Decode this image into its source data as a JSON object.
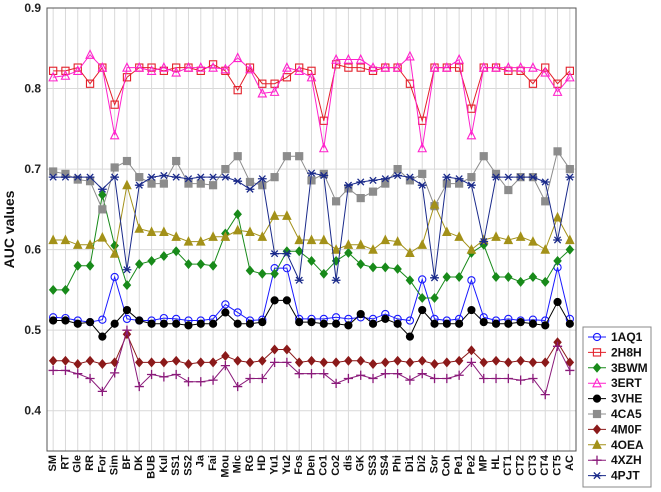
{
  "chart_data": {
    "type": "line",
    "title": "",
    "xlabel": "",
    "ylabel": "AUC values",
    "ylim": [
      0.35,
      0.9
    ],
    "yticks": [
      0.4,
      0.5,
      0.6,
      0.7,
      0.8,
      0.9
    ],
    "ytick_labels": [
      "0.4",
      "0.5",
      "0.6",
      "0.7",
      "0.8",
      "0.9"
    ],
    "grid": true,
    "legend_position": "right-bottom",
    "categories": [
      "SM",
      "RT",
      "Gle",
      "RR",
      "For",
      "Sim",
      "BF",
      "DK",
      "BUB",
      "Kul",
      "SS1",
      "SS2",
      "Ja",
      "Fai",
      "Mou",
      "Mic",
      "RG",
      "HD",
      "Yu1",
      "Yu2",
      "Fos",
      "Den",
      "Co1",
      "Co2",
      "dis",
      "GK",
      "SS3",
      "SS4",
      "Phi",
      "Di1",
      "Di2",
      "Sor",
      "Coh",
      "Pe1",
      "Pe2",
      "MP",
      "HL",
      "CT1",
      "CT2",
      "CT3",
      "CT4",
      "CT5",
      "AC"
    ],
    "series": [
      {
        "name": "1AQ1",
        "color": "#1a1aff",
        "marker": "circle-open",
        "values": [
          0.516,
          0.515,
          0.512,
          0.51,
          0.513,
          0.566,
          0.514,
          0.512,
          0.512,
          0.515,
          0.514,
          0.512,
          0.512,
          0.514,
          0.532,
          0.522,
          0.512,
          0.513,
          0.577,
          0.577,
          0.514,
          0.514,
          0.514,
          0.516,
          0.514,
          0.516,
          0.514,
          0.52,
          0.514,
          0.512,
          0.563,
          0.514,
          0.512,
          0.514,
          0.562,
          0.516,
          0.512,
          0.514,
          0.512,
          0.513,
          0.512,
          0.578,
          0.514
        ]
      },
      {
        "name": "2H8H",
        "color": "#e3202a",
        "marker": "square-open",
        "values": [
          0.822,
          0.822,
          0.826,
          0.806,
          0.826,
          0.78,
          0.814,
          0.826,
          0.826,
          0.822,
          0.826,
          0.826,
          0.822,
          0.83,
          0.822,
          0.798,
          0.826,
          0.806,
          0.806,
          0.814,
          0.826,
          0.822,
          0.76,
          0.83,
          0.826,
          0.826,
          0.822,
          0.826,
          0.826,
          0.806,
          0.76,
          0.826,
          0.826,
          0.826,
          0.775,
          0.826,
          0.826,
          0.822,
          0.822,
          0.806,
          0.826,
          0.806,
          0.822
        ]
      },
      {
        "name": "3BWM",
        "color": "#188a1a",
        "marker": "diamond-filled",
        "values": [
          0.55,
          0.55,
          0.58,
          0.58,
          0.668,
          0.605,
          0.556,
          0.582,
          0.586,
          0.592,
          0.598,
          0.582,
          0.582,
          0.58,
          0.62,
          0.644,
          0.574,
          0.57,
          0.57,
          0.598,
          0.598,
          0.586,
          0.57,
          0.586,
          0.596,
          0.582,
          0.578,
          0.578,
          0.576,
          0.562,
          0.54,
          0.54,
          0.566,
          0.566,
          0.596,
          0.606,
          0.566,
          0.566,
          0.56,
          0.566,
          0.56,
          0.586,
          0.6
        ]
      },
      {
        "name": "3ERT",
        "color": "#ff22cc",
        "marker": "triangle-open",
        "values": [
          0.814,
          0.816,
          0.822,
          0.842,
          0.826,
          0.742,
          0.826,
          0.826,
          0.822,
          0.826,
          0.82,
          0.826,
          0.826,
          0.826,
          0.824,
          0.838,
          0.824,
          0.794,
          0.796,
          0.826,
          0.822,
          0.814,
          0.726,
          0.836,
          0.836,
          0.836,
          0.826,
          0.826,
          0.826,
          0.84,
          0.726,
          0.826,
          0.826,
          0.836,
          0.742,
          0.826,
          0.826,
          0.826,
          0.826,
          0.826,
          0.82,
          0.796,
          0.814
        ]
      },
      {
        "name": "3VHE",
        "color": "#000000",
        "marker": "circle-filled",
        "values": [
          0.512,
          0.512,
          0.508,
          0.51,
          0.492,
          0.508,
          0.525,
          0.512,
          0.508,
          0.508,
          0.508,
          0.506,
          0.508,
          0.508,
          0.522,
          0.508,
          0.508,
          0.51,
          0.537,
          0.537,
          0.51,
          0.51,
          0.508,
          0.508,
          0.506,
          0.52,
          0.508,
          0.514,
          0.508,
          0.492,
          0.525,
          0.508,
          0.508,
          0.508,
          0.525,
          0.51,
          0.508,
          0.508,
          0.51,
          0.508,
          0.506,
          0.535,
          0.508
        ]
      },
      {
        "name": "4CA5",
        "color": "#8c8c8c",
        "marker": "square-filled",
        "values": [
          0.697,
          0.694,
          0.687,
          0.685,
          0.65,
          0.702,
          0.71,
          0.69,
          0.682,
          0.682,
          0.71,
          0.682,
          0.682,
          0.68,
          0.7,
          0.716,
          0.684,
          0.68,
          0.69,
          0.716,
          0.716,
          0.686,
          0.694,
          0.66,
          0.676,
          0.664,
          0.672,
          0.682,
          0.7,
          0.686,
          0.694,
          0.654,
          0.682,
          0.682,
          0.69,
          0.716,
          0.694,
          0.674,
          0.69,
          0.69,
          0.66,
          0.722,
          0.7
        ]
      },
      {
        "name": "4M0F",
        "color": "#8b1a1a",
        "marker": "diamond-filled",
        "values": [
          0.462,
          0.462,
          0.458,
          0.462,
          0.458,
          0.46,
          0.495,
          0.46,
          0.46,
          0.46,
          0.462,
          0.458,
          0.46,
          0.46,
          0.468,
          0.462,
          0.46,
          0.462,
          0.476,
          0.476,
          0.46,
          0.462,
          0.46,
          0.46,
          0.462,
          0.462,
          0.458,
          0.46,
          0.462,
          0.46,
          0.462,
          0.458,
          0.46,
          0.462,
          0.475,
          0.46,
          0.462,
          0.46,
          0.462,
          0.46,
          0.46,
          0.485,
          0.46
        ]
      },
      {
        "name": "4OEA",
        "color": "#a39119",
        "marker": "triangle-filled",
        "values": [
          0.612,
          0.612,
          0.606,
          0.606,
          0.615,
          0.595,
          0.68,
          0.626,
          0.622,
          0.622,
          0.616,
          0.61,
          0.61,
          0.616,
          0.616,
          0.624,
          0.622,
          0.616,
          0.642,
          0.642,
          0.612,
          0.612,
          0.612,
          0.6,
          0.606,
          0.606,
          0.6,
          0.612,
          0.61,
          0.596,
          0.606,
          0.656,
          0.622,
          0.616,
          0.6,
          0.612,
          0.616,
          0.612,
          0.616,
          0.61,
          0.6,
          0.64,
          0.612
        ]
      },
      {
        "name": "4XZH",
        "color": "#8a1a7a",
        "marker": "plus",
        "values": [
          0.45,
          0.45,
          0.446,
          0.44,
          0.424,
          0.447,
          0.5,
          0.43,
          0.445,
          0.442,
          0.445,
          0.436,
          0.436,
          0.438,
          0.456,
          0.43,
          0.44,
          0.44,
          0.46,
          0.46,
          0.446,
          0.446,
          0.446,
          0.434,
          0.44,
          0.444,
          0.44,
          0.446,
          0.446,
          0.438,
          0.446,
          0.44,
          0.44,
          0.444,
          0.46,
          0.44,
          0.44,
          0.44,
          0.438,
          0.44,
          0.42,
          0.48,
          0.45
        ]
      },
      {
        "name": "4PJT",
        "color": "#1a2a8a",
        "marker": "asterisk",
        "values": [
          0.69,
          0.69,
          0.69,
          0.69,
          0.675,
          0.69,
          0.575,
          0.68,
          0.69,
          0.692,
          0.69,
          0.688,
          0.69,
          0.69,
          0.69,
          0.685,
          0.675,
          0.688,
          0.595,
          0.595,
          0.562,
          0.695,
          0.692,
          0.562,
          0.68,
          0.684,
          0.686,
          0.688,
          0.692,
          0.69,
          0.68,
          0.565,
          0.69,
          0.688,
          0.68,
          0.61,
          0.69,
          0.69,
          0.69,
          0.69,
          0.684,
          0.612,
          0.69
        ]
      }
    ]
  }
}
